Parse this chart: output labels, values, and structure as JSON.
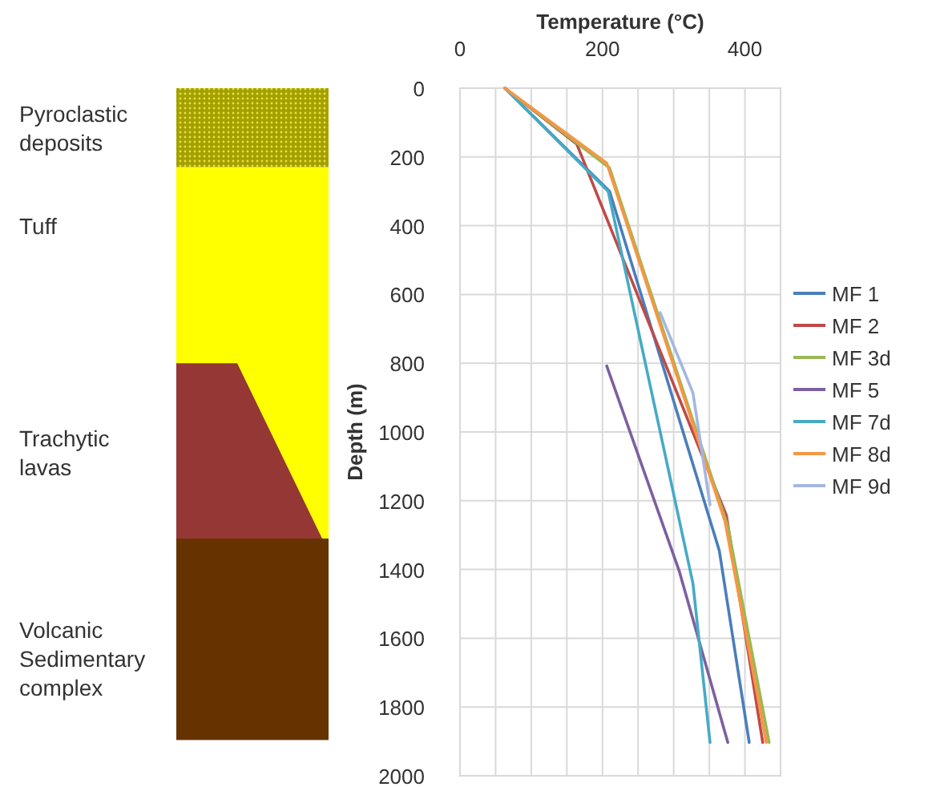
{
  "chart_data": [
    {
      "type": "other",
      "annotations": [
        "Pyroclastic deposits",
        "Tuff",
        "Trachytic lavas",
        "Volcanic Sedimentary complex"
      ]
    },
    {
      "type": "line",
      "xlabel": "Temperature (°C)",
      "ylabel": "Depth (m)",
      "xlim": [
        0,
        450
      ],
      "xticks": [
        0,
        {
          "value": 50,
          "label": null
        },
        {
          "value": 100,
          "label": null
        },
        {
          "value": 150,
          "label": null
        },
        200,
        {
          "value": 250,
          "label": null
        },
        {
          "value": 300,
          "label": null
        },
        {
          "value": 350,
          "label": null
        },
        400
      ],
      "ylim": [
        2000,
        0
      ],
      "yticks": [
        0,
        200,
        400,
        600,
        800,
        1000,
        1200,
        1400,
        1600,
        1800,
        2000
      ],
      "grid": true,
      "legend": "right",
      "marker": "none",
      "line_style": "solid",
      "series": [
        {
          "name": "MF 1",
          "color": "#4a7ebb",
          "x": [
            63,
            210,
            364,
            406
          ],
          "values": [
            0,
            300,
            1345,
            1903
          ]
        },
        {
          "name": "MF 2",
          "color": "#be4b48",
          "x": [
            63,
            164,
            374,
            425
          ],
          "values": [
            0,
            163,
            1243,
            1903
          ]
        },
        {
          "name": "MF 3d",
          "color": "#98b954",
          "x": [
            63,
            210,
            376,
            434
          ],
          "values": [
            0,
            232,
            1274,
            1903
          ]
        },
        {
          "name": "MF 5",
          "color": "#7d60a0",
          "x": [
            206,
            308,
            376
          ],
          "values": [
            808,
            1406,
            1903
          ]
        },
        {
          "name": "MF 7d",
          "color": "#46aac5",
          "x": [
            63,
            208,
            327,
            351
          ],
          "values": [
            0,
            300,
            1440,
            1903
          ]
        },
        {
          "name": "MF 8d",
          "color": "#f79646",
          "x": [
            63,
            206,
            372,
            430
          ],
          "values": [
            0,
            218,
            1260,
            1903
          ]
        },
        {
          "name": "MF 9d",
          "color": "#a5b6e0",
          "x": [
            281,
            327,
            351
          ],
          "values": [
            653,
            886,
            1212
          ]
        }
      ]
    }
  ]
}
